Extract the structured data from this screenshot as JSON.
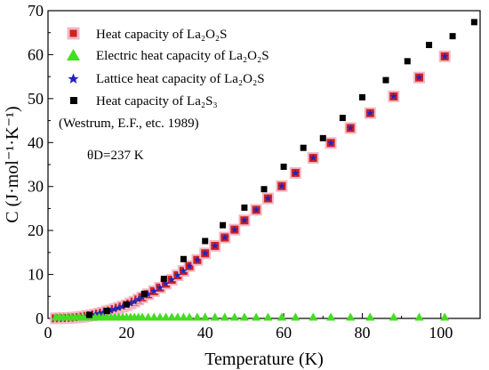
{
  "chart_data": {
    "type": "scatter",
    "xlabel": "Temperature (K)",
    "ylabel": "C (J·mol⁻¹·K⁻¹)",
    "xlim": [
      0,
      110
    ],
    "ylim": [
      0,
      70
    ],
    "xticks": [
      0,
      20,
      40,
      60,
      80,
      100
    ],
    "yticks": [
      0,
      10,
      20,
      30,
      40,
      50,
      60,
      70
    ],
    "grid": false,
    "legend_position": "top-left",
    "series": [
      {
        "name": "Heat capacity of La₂O₂S",
        "marker": "square",
        "color": "#d42020",
        "halo": "#f2b8c6",
        "x": [
          2,
          3,
          4,
          5,
          6,
          7,
          8,
          9,
          10,
          11,
          12,
          13,
          14,
          15,
          16,
          17,
          18,
          19,
          20,
          21,
          22,
          23,
          24,
          25.5,
          27,
          28.5,
          30,
          31.5,
          33,
          34.5,
          36,
          38,
          40,
          42.5,
          45,
          47.5,
          50,
          53,
          56,
          59.5,
          63,
          67.5,
          72,
          77,
          82,
          88,
          94.5,
          101
        ],
        "y": [
          0.02,
          0.04,
          0.07,
          0.1,
          0.15,
          0.2,
          0.3,
          0.4,
          0.55,
          0.7,
          0.9,
          1.1,
          1.3,
          1.6,
          1.8,
          2.1,
          2.4,
          2.7,
          3.0,
          3.4,
          3.8,
          4.3,
          4.8,
          5.5,
          6.2,
          7.0,
          7.9,
          8.8,
          9.8,
          10.8,
          11.9,
          13.3,
          14.8,
          16.5,
          18.4,
          20.2,
          22.3,
          24.7,
          27.3,
          30.1,
          33.1,
          36.5,
          39.9,
          43.3,
          46.7,
          50.5,
          54.8,
          59.6
        ]
      },
      {
        "name": "Electric heat capacity of La₂O₂S",
        "marker": "triangle",
        "color": "#44dd22",
        "x": [
          2,
          3,
          4,
          5,
          6,
          7,
          8,
          9,
          10,
          11,
          12,
          13,
          14,
          15,
          16,
          17,
          18,
          19,
          20,
          21,
          22,
          23,
          24,
          25.5,
          27,
          28.5,
          30,
          31.5,
          33,
          34.5,
          36,
          38,
          40,
          42.5,
          45,
          47.5,
          50,
          53,
          56,
          59.5,
          63,
          67.5,
          72,
          77,
          82,
          88,
          94.5,
          101
        ],
        "y": [
          0.3,
          0.3,
          0.3,
          0.3,
          0.3,
          0.3,
          0.3,
          0.3,
          0.3,
          0.3,
          0.3,
          0.3,
          0.3,
          0.3,
          0.3,
          0.3,
          0.3,
          0.3,
          0.3,
          0.3,
          0.3,
          0.3,
          0.3,
          0.3,
          0.3,
          0.3,
          0.3,
          0.3,
          0.3,
          0.3,
          0.3,
          0.3,
          0.3,
          0.3,
          0.3,
          0.3,
          0.3,
          0.3,
          0.3,
          0.3,
          0.3,
          0.3,
          0.3,
          0.3,
          0.3,
          0.3,
          0.3,
          0.3
        ]
      },
      {
        "name": "Lattice heat capacity of La₂O₂S",
        "marker": "star",
        "color": "#2222bb",
        "x": [
          2,
          3,
          4,
          5,
          6,
          7,
          8,
          9,
          10,
          11,
          12,
          13,
          14,
          15,
          16,
          17,
          18,
          19,
          20,
          21,
          22,
          23,
          24,
          25.5,
          27,
          28.5,
          30,
          31.5,
          33,
          34.5,
          36,
          38,
          40,
          42.5,
          45,
          47.5,
          50,
          53,
          56,
          59.5,
          63,
          67.5,
          72,
          77,
          82,
          88,
          94.5,
          101
        ],
        "y": [
          0.02,
          0.04,
          0.07,
          0.1,
          0.15,
          0.2,
          0.3,
          0.4,
          0.55,
          0.7,
          0.9,
          1.1,
          1.3,
          1.6,
          1.8,
          2.1,
          2.4,
          2.7,
          3.0,
          3.4,
          3.8,
          4.3,
          4.8,
          5.5,
          6.2,
          7.0,
          7.9,
          8.8,
          9.8,
          10.8,
          11.9,
          13.3,
          14.8,
          16.5,
          18.4,
          20.2,
          22.3,
          24.7,
          27.3,
          30.1,
          33.1,
          36.5,
          39.9,
          43.3,
          46.7,
          50.5,
          54.8,
          59.6
        ]
      },
      {
        "name": "Heat capacity of La₂S₃",
        "marker": "square-small",
        "color": "#000000",
        "x": [
          10.5,
          15,
          20,
          24.5,
          29.5,
          34.5,
          40,
          44.5,
          50,
          55,
          60,
          65,
          70,
          75,
          80,
          86,
          91.5,
          97,
          103,
          108.5
        ],
        "y": [
          0.8,
          1.7,
          3.2,
          5.6,
          9.0,
          13.5,
          17.6,
          21.2,
          25.2,
          29.4,
          34.5,
          38.8,
          41.0,
          45.6,
          50.3,
          54.2,
          58.5,
          62.2,
          64.2,
          67.4
        ]
      }
    ],
    "annotations": [
      "(Westrum, E.F., etc. 1989)",
      "θD=237 K"
    ]
  }
}
